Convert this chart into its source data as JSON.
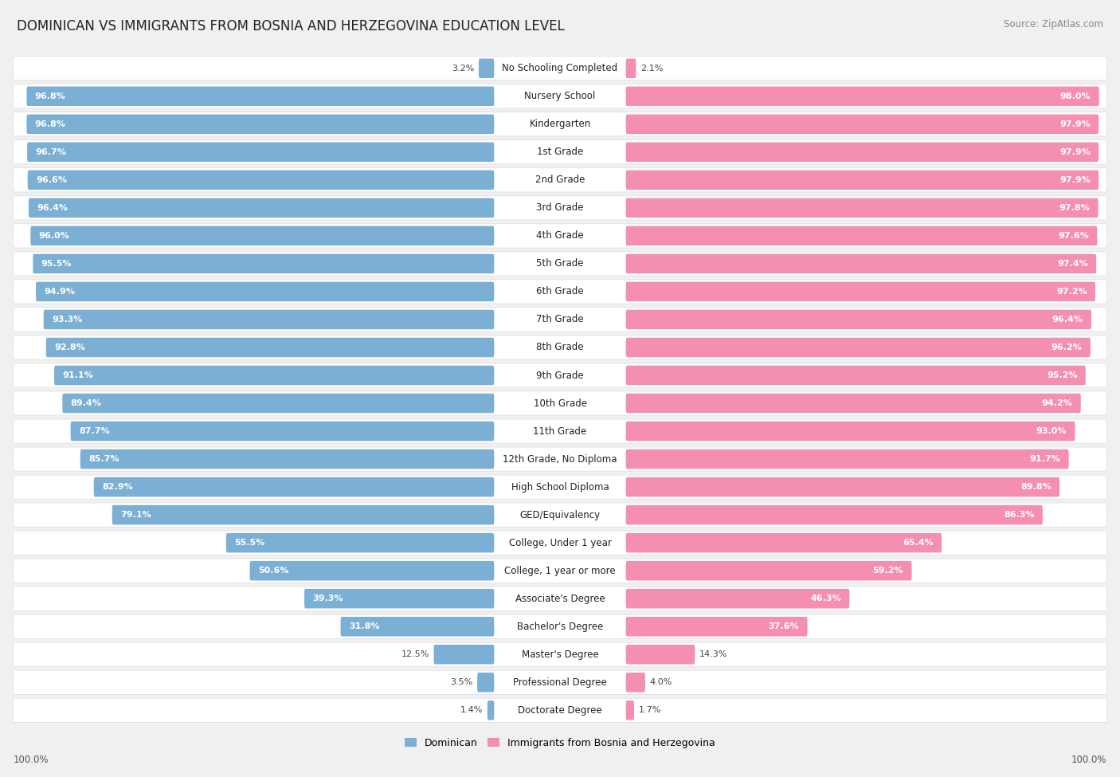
{
  "title": "DOMINICAN VS IMMIGRANTS FROM BOSNIA AND HERZEGOVINA EDUCATION LEVEL",
  "source": "Source: ZipAtlas.com",
  "categories": [
    "No Schooling Completed",
    "Nursery School",
    "Kindergarten",
    "1st Grade",
    "2nd Grade",
    "3rd Grade",
    "4th Grade",
    "5th Grade",
    "6th Grade",
    "7th Grade",
    "8th Grade",
    "9th Grade",
    "10th Grade",
    "11th Grade",
    "12th Grade, No Diploma",
    "High School Diploma",
    "GED/Equivalency",
    "College, Under 1 year",
    "College, 1 year or more",
    "Associate's Degree",
    "Bachelor's Degree",
    "Master's Degree",
    "Professional Degree",
    "Doctorate Degree"
  ],
  "dominican": [
    3.2,
    96.8,
    96.8,
    96.7,
    96.6,
    96.4,
    96.0,
    95.5,
    94.9,
    93.3,
    92.8,
    91.1,
    89.4,
    87.7,
    85.7,
    82.9,
    79.1,
    55.5,
    50.6,
    39.3,
    31.8,
    12.5,
    3.5,
    1.4
  ],
  "bosnia": [
    2.1,
    98.0,
    97.9,
    97.9,
    97.9,
    97.8,
    97.6,
    97.4,
    97.2,
    96.4,
    96.2,
    95.2,
    94.2,
    93.0,
    91.7,
    89.8,
    86.3,
    65.4,
    59.2,
    46.3,
    37.6,
    14.3,
    4.0,
    1.7
  ],
  "color_dominican": "#7bafd4",
  "color_bosnia": "#f48fb1",
  "bg_color": "#f0f0f0",
  "bar_bg": "#ffffff",
  "title_fontsize": 12,
  "label_fontsize": 8.5,
  "value_fontsize": 8,
  "legend_fontsize": 9,
  "source_fontsize": 8.5
}
